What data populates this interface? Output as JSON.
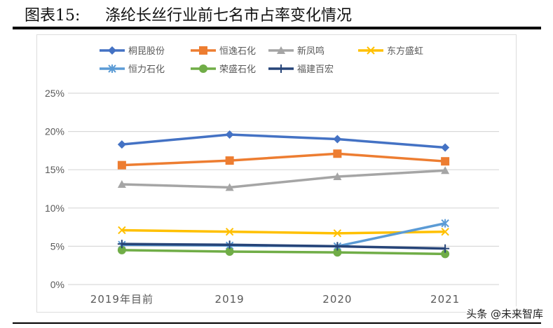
{
  "figure_label": "图表15:",
  "title": "涤纶长丝行业前七名市占率变化情况",
  "watermark": "头条 @未来智库",
  "chart_data": {
    "type": "line",
    "categories": [
      "2019年目前",
      "2019",
      "2020",
      "2021"
    ],
    "ylim": [
      0,
      25
    ],
    "yticks": [
      "0%",
      "5%",
      "10%",
      "15%",
      "20%",
      "25%"
    ],
    "grid": true,
    "legend_position": "top",
    "series": [
      {
        "name": "桐昆股份",
        "color": "#4472C4",
        "marker": "diamond",
        "values": [
          18.3,
          19.6,
          19.0,
          17.9
        ]
      },
      {
        "name": "恒逸石化",
        "color": "#ED7D31",
        "marker": "square",
        "values": [
          15.6,
          16.2,
          17.1,
          16.1
        ]
      },
      {
        "name": "新凤鸣",
        "color": "#A5A5A5",
        "marker": "triangle",
        "values": [
          13.1,
          12.7,
          14.1,
          14.9
        ]
      },
      {
        "name": "东方盛虹",
        "color": "#FFC000",
        "marker": "x",
        "values": [
          7.1,
          6.9,
          6.7,
          6.9
        ]
      },
      {
        "name": "恒力石化",
        "color": "#5B9BD5",
        "marker": "star",
        "values": [
          5.2,
          5.1,
          5.0,
          8.0
        ]
      },
      {
        "name": "荣盛石化",
        "color": "#70AD47",
        "marker": "circle",
        "values": [
          4.5,
          4.3,
          4.2,
          4.0
        ]
      },
      {
        "name": "福建百宏",
        "color": "#264478",
        "marker": "plus",
        "values": [
          5.3,
          5.2,
          5.0,
          4.7
        ]
      }
    ]
  }
}
